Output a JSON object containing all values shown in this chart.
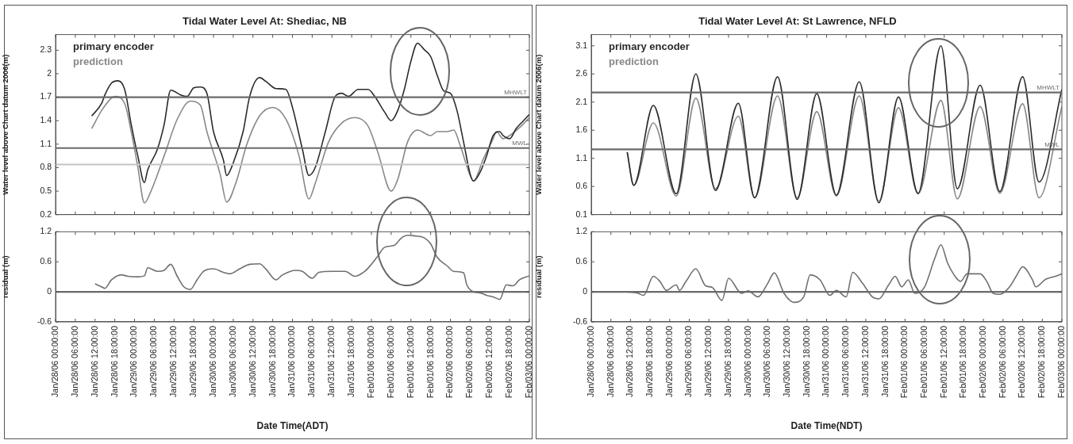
{
  "chart_data": [
    {
      "type": "line",
      "title": "Tidal Water Level At: Shediac, NB",
      "ylabel": "Water level above Chart datum 2006(m)",
      "legend": "top left",
      "tick_labels": "y",
      "xlim": [
        "2006-01-28T00:00",
        "2006-02-03T00:00"
      ],
      "ylim": [
        0.2,
        2.5
      ],
      "yticks": [
        0.2,
        0.5,
        0.8,
        1.1,
        1.4,
        1.7,
        2,
        2.3
      ],
      "xticks": [
        {
          "value": "2006-01-28T00:00",
          "label": null
        },
        {
          "value": "2006-01-28T06:00",
          "label": null
        },
        {
          "value": "2006-01-28T12:00",
          "label": null
        },
        {
          "value": "2006-01-28T18:00",
          "label": null
        },
        {
          "value": "2006-01-29T00:00",
          "label": null
        },
        {
          "value": "2006-01-29T06:00",
          "label": null
        },
        {
          "value": "2006-01-29T12:00",
          "label": null
        },
        {
          "value": "2006-01-29T18:00",
          "label": null
        },
        {
          "value": "2006-01-30T00:00",
          "label": null
        },
        {
          "value": "2006-01-30T06:00",
          "label": null
        },
        {
          "value": "2006-01-30T12:00",
          "label": null
        },
        {
          "value": "2006-01-30T18:00",
          "label": null
        },
        {
          "value": "2006-01-31T00:00",
          "label": null
        },
        {
          "value": "2006-01-31T06:00",
          "label": null
        },
        {
          "value": "2006-01-31T12:00",
          "label": null
        },
        {
          "value": "2006-01-31T18:00",
          "label": null
        },
        {
          "value": "2006-02-01T00:00",
          "label": null
        },
        {
          "value": "2006-02-01T06:00",
          "label": null
        },
        {
          "value": "2006-02-01T12:00",
          "label": null
        },
        {
          "value": "2006-02-01T18:00",
          "label": null
        },
        {
          "value": "2006-02-02T00:00",
          "label": null
        },
        {
          "value": "2006-02-02T06:00",
          "label": null
        },
        {
          "value": "2006-02-02T12:00",
          "label": null
        },
        {
          "value": "2006-02-02T18:00",
          "label": null
        },
        {
          "value": "2006-02-03T00:00",
          "label": null
        }
      ],
      "ref_lines": [
        {
          "axis": "y",
          "value": 1.7,
          "label": "MHWLT",
          "color": "#6a6a6a"
        },
        {
          "axis": "y",
          "value": 1.05,
          "label": "MWL",
          "color": "#6a6a6a"
        },
        {
          "axis": "y",
          "value": 0.84,
          "color": "#c4c4c4"
        }
      ],
      "series": [
        {
          "name": "primary encoder",
          "color": "#2b2b2b",
          "x": [
            "2006-01-28T11:00",
            "2006-01-28T14:00",
            "2006-01-28T15:00",
            "2006-01-28T17:00",
            "2006-01-28T19:00",
            "2006-01-28T21:00",
            "2006-01-28T23:00",
            "2006-01-29T01:00",
            "2006-01-29T03:00",
            "2006-01-29T04:00",
            "2006-01-29T07:00",
            "2006-01-29T09:00",
            "2006-01-29T11:00",
            "2006-01-29T14:00",
            "2006-01-29T16:00",
            "2006-01-29T18:00",
            "2006-01-29T20:00",
            "2006-01-29T22:00",
            "2006-01-30T00:00",
            "2006-01-30T03:00",
            "2006-01-30T04:00",
            "2006-01-30T06:00",
            "2006-01-30T09:00",
            "2006-01-30T11:00",
            "2006-01-30T14:00",
            "2006-01-30T16:00",
            "2006-01-30T19:00",
            "2006-01-30T22:00",
            "2006-01-31T00:00",
            "2006-01-31T03:00",
            "2006-01-31T05:00",
            "2006-01-31T07:00",
            "2006-01-31T10:00",
            "2006-01-31T13:00",
            "2006-01-31T15:00",
            "2006-01-31T17:00",
            "2006-01-31T20:00",
            "2006-01-31T23:00",
            "2006-02-01T01:00",
            "2006-02-01T04:00",
            "2006-02-01T06:00",
            "2006-02-01T08:00",
            "2006-02-01T10:00",
            "2006-02-01T12:00",
            "2006-02-01T14:00",
            "2006-02-01T16:00",
            "2006-02-01T18:00",
            "2006-02-01T20:00",
            "2006-02-01T22:00",
            "2006-02-02T00:00",
            "2006-02-02T02:00",
            "2006-02-02T04:00",
            "2006-02-02T06:00",
            "2006-02-02T07:00",
            "2006-02-02T09:00",
            "2006-02-02T11:00",
            "2006-02-02T13:00",
            "2006-02-02T15:00",
            "2006-02-02T16:00",
            "2006-02-02T18:00",
            "2006-02-02T20:00",
            "2006-02-02T22:00",
            "2006-02-03T00:00"
          ],
          "values": [
            1.46,
            1.62,
            1.73,
            1.88,
            1.91,
            1.8,
            1.35,
            0.95,
            0.61,
            0.77,
            1.04,
            1.35,
            1.79,
            1.73,
            1.71,
            1.82,
            1.83,
            1.75,
            1.26,
            0.9,
            0.7,
            0.86,
            1.26,
            1.71,
            1.95,
            1.9,
            1.81,
            1.8,
            1.57,
            1.04,
            0.7,
            0.81,
            1.26,
            1.71,
            1.75,
            1.71,
            1.8,
            1.8,
            1.71,
            1.51,
            1.4,
            1.53,
            1.8,
            2.16,
            2.39,
            2.31,
            2.22,
            1.98,
            1.78,
            1.75,
            1.53,
            1.13,
            0.72,
            0.63,
            0.74,
            0.95,
            1.21,
            1.26,
            1.21,
            1.17,
            1.3,
            1.39,
            1.48
          ]
        },
        {
          "name": "prediction",
          "color": "#888888",
          "x": [
            "2006-01-28T11:00",
            "2006-01-28T14:00",
            "2006-01-28T17:00",
            "2006-01-28T18:00",
            "2006-01-28T21:00",
            "2006-01-28T23:00",
            "2006-01-29T01:00",
            "2006-01-29T03:00",
            "2006-01-29T05:00",
            "2006-01-29T09:00",
            "2006-01-29T13:00",
            "2006-01-29T17:00",
            "2006-01-29T20:00",
            "2006-01-29T22:00",
            "2006-01-30T02:00",
            "2006-01-30T04:00",
            "2006-01-30T07:00",
            "2006-01-30T10:00",
            "2006-01-30T14:00",
            "2006-01-30T18:00",
            "2006-01-30T22:00",
            "2006-01-31T02:00",
            "2006-01-31T05:00",
            "2006-01-31T07:00",
            "2006-01-31T11:00",
            "2006-01-31T15:00",
            "2006-01-31T19:00",
            "2006-01-31T23:00",
            "2006-02-01T02:00",
            "2006-02-01T06:00",
            "2006-02-01T08:00",
            "2006-02-01T11:00",
            "2006-02-01T14:00",
            "2006-02-01T18:00",
            "2006-02-01T20:00",
            "2006-02-01T23:00",
            "2006-02-02T01:00",
            "2006-02-02T03:00",
            "2006-02-02T06:00",
            "2006-02-02T07:00",
            "2006-02-02T10:00",
            "2006-02-02T13:00",
            "2006-02-02T14:00",
            "2006-02-02T16:00",
            "2006-02-02T18:00",
            "2006-02-02T22:00",
            "2006-02-03T00:00"
          ],
          "values": [
            1.3,
            1.53,
            1.69,
            1.71,
            1.62,
            1.26,
            0.81,
            0.35,
            0.5,
            0.95,
            1.42,
            1.65,
            1.6,
            1.26,
            0.72,
            0.36,
            0.63,
            1.08,
            1.46,
            1.57,
            1.42,
            0.95,
            0.4,
            0.61,
            1.13,
            1.37,
            1.44,
            1.33,
            0.99,
            0.5,
            0.65,
            1.13,
            1.28,
            1.21,
            1.26,
            1.26,
            1.28,
            1.08,
            0.7,
            0.63,
            0.91,
            1.17,
            1.26,
            1.17,
            1.21,
            1.35,
            1.44
          ]
        }
      ]
    },
    {
      "type": "line",
      "ylabel": "residual (m)",
      "xlabel": "Date Time(ADT)",
      "color": "#707070",
      "xlim": [
        "2006-01-28T00:00",
        "2006-02-03T00:00"
      ],
      "ylim": [
        -0.6,
        1.2
      ],
      "yticks": [
        -0.6,
        0,
        0.6,
        1.2
      ],
      "xticks": [
        {
          "value": "2006-01-28T00:00",
          "label": "Jan/28/06 00:00:00"
        },
        {
          "value": "2006-01-28T06:00",
          "label": "Jan/28/06 06:00:00"
        },
        {
          "value": "2006-01-28T12:00",
          "label": "Jan/28/06 12:00:00"
        },
        {
          "value": "2006-01-28T18:00",
          "label": "Jan/28/06 18:00:00"
        },
        {
          "value": "2006-01-29T00:00",
          "label": "Jan/29/06 00:00:00"
        },
        {
          "value": "2006-01-29T06:00",
          "label": "Jan/29/06 06:00:00"
        },
        {
          "value": "2006-01-29T12:00",
          "label": "Jan/29/06 12:00:00"
        },
        {
          "value": "2006-01-29T18:00",
          "label": "Jan/29/06 18:00:00"
        },
        {
          "value": "2006-01-30T00:00",
          "label": "Jan/30/06 00:00:00"
        },
        {
          "value": "2006-01-30T06:00",
          "label": "Jan/30/06 06:00:00"
        },
        {
          "value": "2006-01-30T12:00",
          "label": "Jan/30/06 12:00:00"
        },
        {
          "value": "2006-01-30T18:00",
          "label": "Jan/30/06 18:00:00"
        },
        {
          "value": "2006-01-31T00:00",
          "label": "Jan/31/06 00:00:00"
        },
        {
          "value": "2006-01-31T06:00",
          "label": "Jan/31/06 06:00:00"
        },
        {
          "value": "2006-01-31T12:00",
          "label": "Jan/31/06 12:00:00"
        },
        {
          "value": "2006-01-31T18:00",
          "label": "Jan/31/06 18:00:00"
        },
        {
          "value": "2006-02-01T00:00",
          "label": "Feb/01/06 00:00:00"
        },
        {
          "value": "2006-02-01T06:00",
          "label": "Feb/01/06 06:00:00"
        },
        {
          "value": "2006-02-01T12:00",
          "label": "Feb/01/06 12:00:00"
        },
        {
          "value": "2006-02-01T18:00",
          "label": "Feb/01/06 18:00:00"
        },
        {
          "value": "2006-02-02T00:00",
          "label": "Feb/02/06 00:00:00"
        },
        {
          "value": "2006-02-02T06:00",
          "label": "Feb/02/06 06:00:00"
        },
        {
          "value": "2006-02-02T12:00",
          "label": "Feb/02/06 12:00:00"
        },
        {
          "value": "2006-02-02T18:00",
          "label": "Feb/02/06 18:00:00"
        },
        {
          "value": "2006-02-03T00:00",
          "label": "Feb/03/06 00:00:00"
        }
      ],
      "ref_lines": [
        {
          "axis": "y",
          "value": 0,
          "color": "#6a6a6a"
        }
      ],
      "x": [
        "2006-01-28T12:00",
        "2006-01-28T14:00",
        "2006-01-28T15:00",
        "2006-01-28T17:00",
        "2006-01-28T20:00",
        "2006-01-28T22:00",
        "2006-01-29T01:00",
        "2006-01-29T03:00",
        "2006-01-29T04:00",
        "2006-01-29T07:00",
        "2006-01-29T09:00",
        "2006-01-29T11:00",
        "2006-01-29T13:00",
        "2006-01-29T15:00",
        "2006-01-29T17:00",
        "2006-01-29T19:00",
        "2006-01-29T21:00",
        "2006-01-30T00:00",
        "2006-01-30T03:00",
        "2006-01-30T05:00",
        "2006-01-30T08:00",
        "2006-01-30T11:00",
        "2006-01-30T14:00",
        "2006-01-30T16:00",
        "2006-01-30T19:00",
        "2006-01-30T21:00",
        "2006-01-31T01:00",
        "2006-01-31T03:00",
        "2006-01-31T06:00",
        "2006-01-31T08:00",
        "2006-01-31T12:00",
        "2006-01-31T16:00",
        "2006-01-31T19:00",
        "2006-01-31T22:00",
        "2006-02-01T00:00",
        "2006-02-01T02:00",
        "2006-02-01T04:00",
        "2006-02-01T07:00",
        "2006-02-01T09:00",
        "2006-02-01T11:00",
        "2006-02-01T13:00",
        "2006-02-01T16:00",
        "2006-02-01T18:00",
        "2006-02-01T20:00",
        "2006-02-01T23:00",
        "2006-02-02T01:00",
        "2006-02-02T04:00",
        "2006-02-02T05:00",
        "2006-02-02T07:00",
        "2006-02-02T09:00",
        "2006-02-02T11:00",
        "2006-02-02T13:00",
        "2006-02-02T15:00",
        "2006-02-02T17:00",
        "2006-02-02T19:00",
        "2006-02-02T21:00",
        "2006-02-03T00:00"
      ],
      "values": [
        0.16,
        0.1,
        0.07,
        0.24,
        0.34,
        0.31,
        0.3,
        0.32,
        0.48,
        0.41,
        0.43,
        0.55,
        0.31,
        0.1,
        0.05,
        0.24,
        0.41,
        0.46,
        0.39,
        0.36,
        0.46,
        0.55,
        0.56,
        0.45,
        0.24,
        0.34,
        0.43,
        0.41,
        0.27,
        0.39,
        0.41,
        0.41,
        0.31,
        0.41,
        0.55,
        0.72,
        0.89,
        0.93,
        1.07,
        1.13,
        1.12,
        1.08,
        0.96,
        0.69,
        0.52,
        0.41,
        0.38,
        0.14,
        0,
        -0.02,
        -0.07,
        -0.1,
        -0.15,
        0.14,
        0.12,
        0.24,
        0.32
      ]
    },
    {
      "type": "line",
      "title": "Tidal Water Level At: St Lawrence, NFLD",
      "ylabel": "Water level above Chart datum 2006(m)",
      "legend": "top left",
      "tick_labels": "y",
      "xlim": [
        "2006-01-28T00:00",
        "2006-02-03T00:00"
      ],
      "ylim": [
        0.1,
        3.3
      ],
      "yticks": [
        0.1,
        0.6,
        1.1,
        1.6,
        2.1,
        2.6,
        3.1
      ],
      "xticks": [
        {
          "value": "2006-01-28T00:00",
          "label": null
        },
        {
          "value": "2006-01-28T06:00",
          "label": null
        },
        {
          "value": "2006-01-28T12:00",
          "label": null
        },
        {
          "value": "2006-01-28T18:00",
          "label": null
        },
        {
          "value": "2006-01-29T00:00",
          "label": null
        },
        {
          "value": "2006-01-29T06:00",
          "label": null
        },
        {
          "value": "2006-01-29T12:00",
          "label": null
        },
        {
          "value": "2006-01-29T18:00",
          "label": null
        },
        {
          "value": "2006-01-30T00:00",
          "label": null
        },
        {
          "value": "2006-01-30T06:00",
          "label": null
        },
        {
          "value": "2006-01-30T12:00",
          "label": null
        },
        {
          "value": "2006-01-30T18:00",
          "label": null
        },
        {
          "value": "2006-01-31T00:00",
          "label": null
        },
        {
          "value": "2006-01-31T06:00",
          "label": null
        },
        {
          "value": "2006-01-31T12:00",
          "label": null
        },
        {
          "value": "2006-01-31T18:00",
          "label": null
        },
        {
          "value": "2006-02-01T00:00",
          "label": null
        },
        {
          "value": "2006-02-01T06:00",
          "label": null
        },
        {
          "value": "2006-02-01T12:00",
          "label": null
        },
        {
          "value": "2006-02-01T18:00",
          "label": null
        },
        {
          "value": "2006-02-02T00:00",
          "label": null
        },
        {
          "value": "2006-02-02T06:00",
          "label": null
        },
        {
          "value": "2006-02-02T12:00",
          "label": null
        },
        {
          "value": "2006-02-02T18:00",
          "label": null
        },
        {
          "value": "2006-02-03T00:00",
          "label": null
        }
      ],
      "ref_lines": [
        {
          "axis": "y",
          "value": 2.27,
          "label": "MHWLT",
          "color": "#6a6a6a"
        },
        {
          "axis": "y",
          "value": 1.26,
          "label": "MWL",
          "color": "#6a6a6a"
        }
      ],
      "series": [
        {
          "name": "primary encoder",
          "color": "#2b2b2b",
          "x": [
            "2006-01-28T11:00",
            "2006-01-28T13:00",
            "2006-01-28T19:00",
            "2006-01-29T02:00",
            "2006-01-29T08:00",
            "2006-01-29T14:00",
            "2006-01-29T21:00",
            "2006-01-30T02:00",
            "2006-01-30T09:00",
            "2006-01-30T15:00",
            "2006-01-30T21:00",
            "2006-01-31T03:00",
            "2006-01-31T10:00",
            "2006-01-31T16:00",
            "2006-01-31T22:00",
            "2006-02-01T04:00",
            "2006-02-01T11:00",
            "2006-02-01T16:00",
            "2006-02-01T23:00",
            "2006-02-02T05:00",
            "2006-02-02T12:00",
            "2006-02-02T17:00",
            "2006-02-03T00:00"
          ],
          "values": [
            1.21,
            0.62,
            2.04,
            0.47,
            2.6,
            0.53,
            2.08,
            0.4,
            2.55,
            0.37,
            2.25,
            0.45,
            2.46,
            0.31,
            2.19,
            0.48,
            3.1,
            0.56,
            2.4,
            0.51,
            2.55,
            0.68,
            2.33
          ]
        },
        {
          "name": "prediction",
          "color": "#888888",
          "x": [
            "2006-01-28T11:00",
            "2006-01-28T13:00",
            "2006-01-28T19:00",
            "2006-01-29T02:00",
            "2006-01-29T08:00",
            "2006-01-29T14:00",
            "2006-01-29T21:00",
            "2006-01-30T02:00",
            "2006-01-30T09:00",
            "2006-01-30T15:00",
            "2006-01-30T21:00",
            "2006-01-31T03:00",
            "2006-01-31T10:00",
            "2006-01-31T16:00",
            "2006-01-31T22:00",
            "2006-02-01T04:00",
            "2006-02-01T11:00",
            "2006-02-01T16:00",
            "2006-02-01T23:00",
            "2006-02-02T05:00",
            "2006-02-02T12:00",
            "2006-02-02T17:00",
            "2006-02-03T00:00"
          ],
          "values": [
            1.21,
            0.62,
            1.73,
            0.43,
            2.17,
            0.56,
            1.85,
            0.4,
            2.21,
            0.4,
            1.93,
            0.43,
            2.21,
            0.34,
            2,
            0.47,
            2.13,
            0.38,
            2.02,
            0.48,
            2.07,
            0.4,
            2.02
          ]
        }
      ]
    },
    {
      "type": "line",
      "ylabel": "residual (m)",
      "xlabel": "Date Time(NDT)",
      "color": "#707070",
      "xlim": [
        "2006-01-28T00:00",
        "2006-02-03T00:00"
      ],
      "ylim": [
        -0.6,
        1.2
      ],
      "yticks": [
        -0.6,
        0,
        0.6,
        1.2
      ],
      "xticks": [
        {
          "value": "2006-01-28T00:00",
          "label": "Jan/28/06 00:00:00"
        },
        {
          "value": "2006-01-28T06:00",
          "label": "Jan/28/06 06:00:00"
        },
        {
          "value": "2006-01-28T12:00",
          "label": "Jan/28/06 12:00:00"
        },
        {
          "value": "2006-01-28T18:00",
          "label": "Jan/28/06 18:00:00"
        },
        {
          "value": "2006-01-29T00:00",
          "label": "Jan/29/06 00:00:00"
        },
        {
          "value": "2006-01-29T06:00",
          "label": "Jan/29/06 06:00:00"
        },
        {
          "value": "2006-01-29T12:00",
          "label": "Jan/29/06 12:00:00"
        },
        {
          "value": "2006-01-29T18:00",
          "label": "Jan/29/06 18:00:00"
        },
        {
          "value": "2006-01-30T00:00",
          "label": "Jan/30/06 00:00:00"
        },
        {
          "value": "2006-01-30T06:00",
          "label": "Jan/30/06 06:00:00"
        },
        {
          "value": "2006-01-30T12:00",
          "label": "Jan/30/06 12:00:00"
        },
        {
          "value": "2006-01-30T18:00",
          "label": "Jan/30/06 18:00:00"
        },
        {
          "value": "2006-01-31T00:00",
          "label": "Jan/31/06 00:00:00"
        },
        {
          "value": "2006-01-31T06:00",
          "label": "Jan/31/06 06:00:00"
        },
        {
          "value": "2006-01-31T12:00",
          "label": "Jan/31/06 12:00:00"
        },
        {
          "value": "2006-01-31T18:00",
          "label": "Jan/31/06 18:00:00"
        },
        {
          "value": "2006-02-01T00:00",
          "label": "Feb/01/06 00:00:00"
        },
        {
          "value": "2006-02-01T06:00",
          "label": "Feb/01/06 06:00:00"
        },
        {
          "value": "2006-02-01T12:00",
          "label": "Feb/01/06 12:00:00"
        },
        {
          "value": "2006-02-01T18:00",
          "label": "Feb/01/06 18:00:00"
        },
        {
          "value": "2006-02-02T00:00",
          "label": "Feb/02/06 00:00:00"
        },
        {
          "value": "2006-02-02T06:00",
          "label": "Feb/02/06 06:00:00"
        },
        {
          "value": "2006-02-02T12:00",
          "label": "Feb/02/06 12:00:00"
        },
        {
          "value": "2006-02-02T18:00",
          "label": "Feb/02/06 18:00:00"
        },
        {
          "value": "2006-02-03T00:00",
          "label": "Feb/03/06 00:00:00"
        }
      ],
      "ref_lines": [
        {
          "axis": "y",
          "value": 0,
          "color": "#6a6a6a"
        }
      ],
      "x": [
        "2006-01-28T11:00",
        "2006-01-28T14:00",
        "2006-01-28T16:00",
        "2006-01-28T19:00",
        "2006-01-28T21:00",
        "2006-01-28T23:00",
        "2006-01-29T02:00",
        "2006-01-29T03:00",
        "2006-01-29T05:00",
        "2006-01-29T08:00",
        "2006-01-29T11:00",
        "2006-01-29T13:00",
        "2006-01-29T16:00",
        "2006-01-29T18:00",
        "2006-01-29T22:00",
        "2006-01-30T00:00",
        "2006-01-30T03:00",
        "2006-01-30T06:00",
        "2006-01-30T08:00",
        "2006-01-30T11:00",
        "2006-01-30T14:00",
        "2006-01-30T17:00",
        "2006-01-30T19:00",
        "2006-01-30T22:00",
        "2006-01-31T01:00",
        "2006-01-31T03:00",
        "2006-01-31T06:00",
        "2006-01-31T08:00",
        "2006-01-31T11:00",
        "2006-01-31T14:00",
        "2006-01-31T16:00",
        "2006-01-31T19:00",
        "2006-01-31T21:00",
        "2006-01-31T23:00",
        "2006-02-01T01:00",
        "2006-02-01T03:00",
        "2006-02-01T06:00",
        "2006-02-01T09:00",
        "2006-02-01T11:00",
        "2006-02-01T13:00",
        "2006-02-01T15:00",
        "2006-02-01T17:00",
        "2006-02-01T19:00",
        "2006-02-01T23:00",
        "2006-02-02T01:00",
        "2006-02-02T03:00",
        "2006-02-02T05:00",
        "2006-02-02T08:00",
        "2006-02-02T10:00",
        "2006-02-02T12:00",
        "2006-02-02T15:00",
        "2006-02-02T16:00",
        "2006-02-02T19:00",
        "2006-02-02T22:00",
        "2006-02-03T00:00"
      ],
      "values": [
        0,
        -0.02,
        -0.07,
        0.31,
        0.21,
        0.03,
        0.14,
        0.03,
        0.21,
        0.46,
        0.12,
        0.09,
        -0.17,
        0.27,
        -0.03,
        0.02,
        -0.1,
        0.17,
        0.38,
        -0.03,
        -0.21,
        -0.1,
        0.34,
        0.24,
        -0.07,
        0.03,
        -0.1,
        0.39,
        0.17,
        -0.1,
        -0.14,
        0.14,
        0.31,
        0.1,
        0.24,
        -0.03,
        0.1,
        0.65,
        0.94,
        0.58,
        0.34,
        0.21,
        0.36,
        0.36,
        0.21,
        -0.03,
        -0.05,
        0.1,
        0.31,
        0.5,
        0.24,
        0.1,
        0.25,
        0.31,
        0.36
      ]
    }
  ]
}
